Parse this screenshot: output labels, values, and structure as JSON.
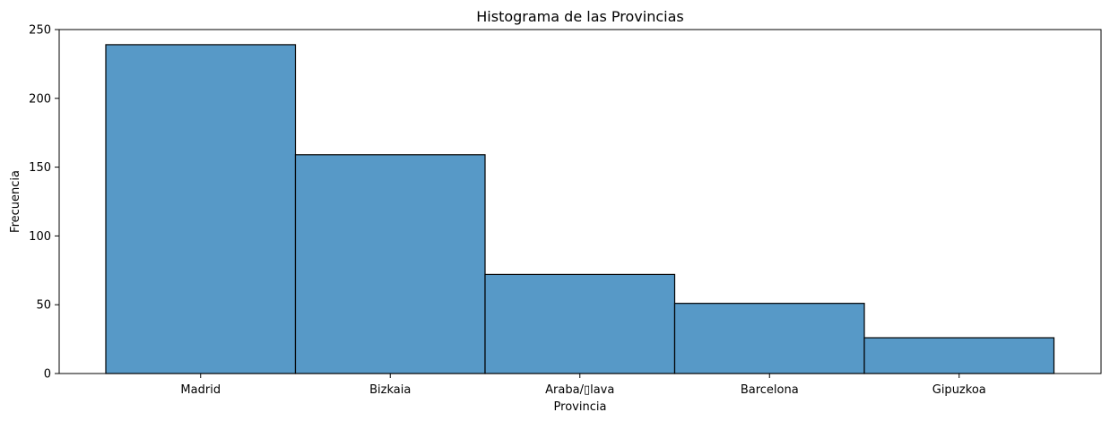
{
  "chart_data": {
    "type": "bar",
    "title": "Histograma de las Provincias",
    "xlabel": "Provincia",
    "ylabel": "Frecuencia",
    "categories": [
      "Madrid",
      "Bizkaia",
      "Araba/▯la​va",
      "Barcelona",
      "Gipuzkoa"
    ],
    "values": [
      239,
      159,
      72,
      51,
      26
    ],
    "ylim": [
      0,
      250
    ],
    "yticks": [
      0,
      50,
      100,
      150,
      200,
      250
    ],
    "grid": false,
    "legend": "none",
    "bar_color": "#5799c7",
    "bar_edge_color": "#000000"
  }
}
